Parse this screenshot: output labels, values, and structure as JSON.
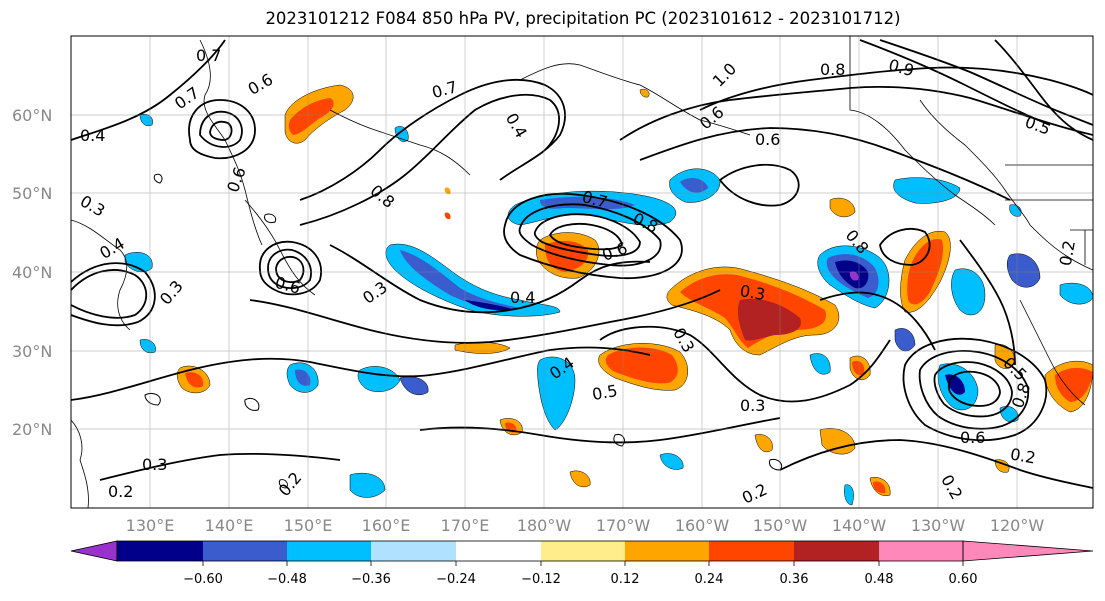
{
  "title": "2023101212 F084 850 hPa PV, precipitation PC (2023101612 - 2023101712)",
  "lat_labels": [
    "60°N",
    "50°N",
    "40°N",
    "30°N",
    "20°N"
  ],
  "lon_labels": [
    "130°E",
    "140°E",
    "150°E",
    "160°E",
    "170°E",
    "180°W",
    "170°W",
    "160°W",
    "150°W",
    "140°W",
    "130°W",
    "120°W"
  ],
  "colorbar": {
    "ticks": [
      "−0.60",
      "−0.48",
      "−0.36",
      "−0.24",
      "−0.12",
      "0.12",
      "0.24",
      "0.36",
      "0.48",
      "0.60"
    ],
    "colors": [
      "#9932cc",
      "#00008b",
      "#3a5ccc",
      "#00bfff",
      "#b0e2ff",
      "#ffffff",
      "#ffec8b",
      "#ffa500",
      "#ff4500",
      "#b22222",
      "#ff88bb"
    ]
  },
  "contour_labels": [
    "0.7",
    "0.6",
    "0.4",
    "0.7",
    "0.7",
    "1.0",
    "0.8",
    "0.9",
    "0.3",
    "0.8",
    "0.3",
    "0.4",
    "0.6",
    "0.7",
    "0.8",
    "0.6",
    "0.4",
    "0.6",
    "0.3",
    "0.8",
    "0.4",
    "0.3",
    "0.3",
    "0.4",
    "0.5",
    "0.3",
    "0.6",
    "0.5",
    "0.8",
    "0.6",
    "0.2",
    "0.2",
    "0.3",
    "0.2",
    "0.2",
    "0.2",
    "0.2",
    "0.5",
    "0.6"
  ]
}
